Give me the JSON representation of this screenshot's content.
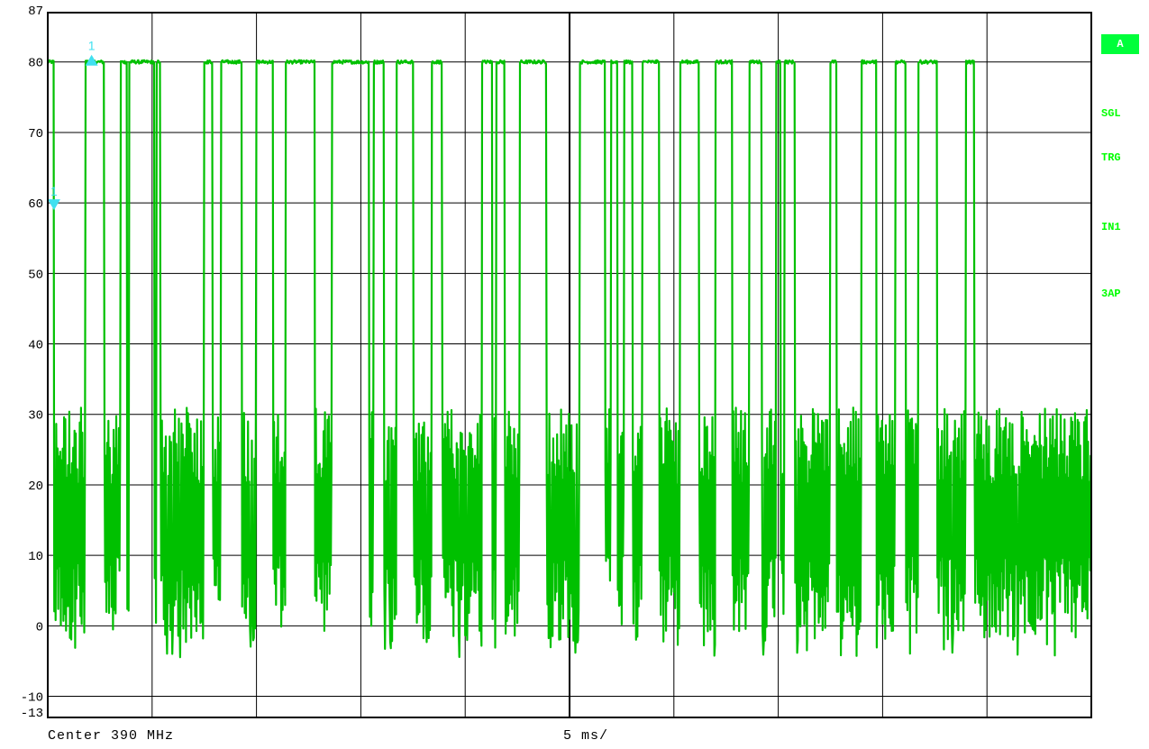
{
  "side_labels": {
    "a": "A",
    "sgl": "SGL",
    "trg": "TRG",
    "in1": "IN1",
    "ap3": "3AP"
  },
  "footer": {
    "center": "Center 390 MHz",
    "sweep": "5 ms/"
  },
  "colors": {
    "trace": "#00c000",
    "marker": "#40e0f0",
    "grid": "#000000",
    "badge": "#00ff00"
  },
  "chart_data": {
    "type": "line",
    "title": "",
    "xlabel": "",
    "ylabel": "",
    "xlim": [
      0,
      50
    ],
    "ylim": [
      -13,
      87
    ],
    "yticks": [
      87,
      80,
      70,
      60,
      50,
      40,
      30,
      20,
      10,
      0,
      -10,
      -13
    ],
    "ytick_labels": [
      "87",
      "80",
      "70",
      "60",
      "50",
      "40",
      "30",
      "20",
      "10",
      "0",
      "-10",
      "-13"
    ],
    "grid": true,
    "x_divisions": 10,
    "markers": [
      {
        "label": "1",
        "x": 2.1,
        "y": 80.0,
        "shape": "triangle-up"
      },
      {
        "label": "1",
        "x": 0.3,
        "y": 60.0,
        "shape": "triangle-down"
      }
    ],
    "high_level": 80.0,
    "noise_band": [
      -2,
      30
    ],
    "pulses": [
      [
        0.0,
        0.3
      ],
      [
        1.8,
        2.7
      ],
      [
        3.5,
        3.8
      ],
      [
        3.9,
        5.1
      ],
      [
        5.2,
        5.4
      ],
      [
        7.5,
        7.9
      ],
      [
        8.3,
        9.3
      ],
      [
        10.0,
        10.8
      ],
      [
        11.4,
        12.8
      ],
      [
        13.6,
        15.4
      ],
      [
        15.6,
        16.1
      ],
      [
        16.7,
        17.5
      ],
      [
        18.4,
        18.9
      ],
      [
        20.8,
        21.3
      ],
      [
        21.5,
        21.9
      ],
      [
        22.6,
        23.9
      ],
      [
        25.5,
        26.7
      ],
      [
        27.0,
        27.3
      ],
      [
        27.6,
        28.0
      ],
      [
        28.5,
        29.3
      ],
      [
        30.3,
        31.2
      ],
      [
        32.0,
        32.8
      ],
      [
        33.6,
        34.2
      ],
      [
        34.9,
        35.1
      ],
      [
        35.3,
        35.8
      ],
      [
        37.5,
        37.8
      ],
      [
        39.0,
        39.7
      ],
      [
        40.6,
        41.1
      ],
      [
        41.7,
        42.6
      ],
      [
        44.0,
        44.4
      ]
    ]
  }
}
